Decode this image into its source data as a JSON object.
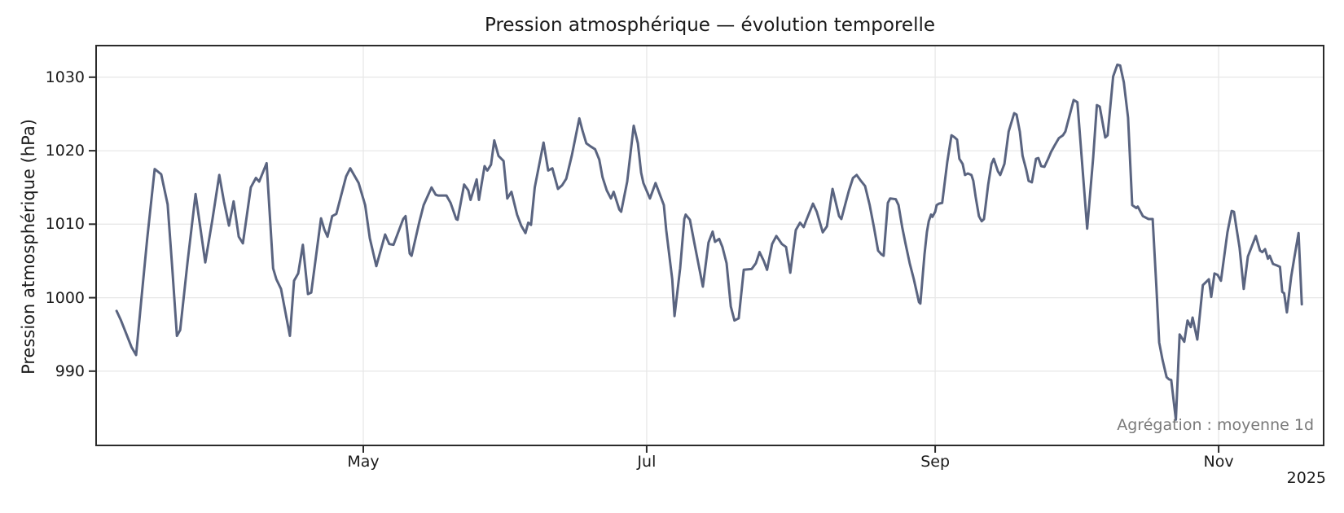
{
  "chart": {
    "title": "Pression atmosphérique — évolution temporelle",
    "ylabel": "Pression atmosphérique (hPa)",
    "annotation": "Agrégation : moyenne 1d",
    "year_offset_label": "2025",
    "colors": {
      "line": "#5a6480",
      "grid": "#e8e8e8",
      "spine": "#2b2b2b",
      "text": "#1a1a1a",
      "annotation_text": "#7a7a7a",
      "background": "#ffffff"
    }
  },
  "chart_data": {
    "type": "line",
    "title": "Pression atmosphérique — évolution temporelle",
    "xlabel": "",
    "ylabel": "Pression atmosphérique (hPa)",
    "annotation": "Agrégation : moyenne 1d",
    "x_unit": "day offset within 2025 (daily mean pressure, hPa); x tick labels are month starts",
    "grid": true,
    "legend": "none",
    "xlim_days": [
      -4.4,
      259.8
    ],
    "ylim": [
      979.9,
      1034.3
    ],
    "yticks": [
      990,
      1000,
      1010,
      1020,
      1030
    ],
    "xticks": [
      {
        "day": 53.1,
        "label": "May"
      },
      {
        "day": 114.1,
        "label": "Jul"
      },
      {
        "day": 176.2,
        "label": "Sep"
      },
      {
        "day": 237.2,
        "label": "Nov"
      }
    ],
    "x_offset_label": "2025",
    "points": [
      [
        0,
        998.2
      ],
      [
        0.9,
        997.0
      ],
      [
        1.9,
        995.4
      ],
      [
        3.2,
        993.3
      ],
      [
        4.2,
        992.2
      ],
      [
        5.3,
        999.5
      ],
      [
        6.6,
        1008.0
      ],
      [
        8.2,
        1017.5
      ],
      [
        9.6,
        1016.8
      ],
      [
        11.0,
        1012.7
      ],
      [
        12.0,
        1004.0
      ],
      [
        13.0,
        994.8
      ],
      [
        13.7,
        995.6
      ],
      [
        15.3,
        1005.0
      ],
      [
        17.0,
        1014.1
      ],
      [
        19.1,
        1004.8
      ],
      [
        20.6,
        1010.5
      ],
      [
        22.1,
        1016.7
      ],
      [
        23.1,
        1013.1
      ],
      [
        24.2,
        1009.8
      ],
      [
        25.2,
        1013.1
      ],
      [
        26.3,
        1008.3
      ],
      [
        27.2,
        1007.4
      ],
      [
        28.9,
        1015.0
      ],
      [
        30.0,
        1016.3
      ],
      [
        30.7,
        1015.8
      ],
      [
        32.3,
        1018.3
      ],
      [
        33.7,
        1004.0
      ],
      [
        34.4,
        1002.5
      ],
      [
        35.4,
        1001.2
      ],
      [
        37.3,
        994.8
      ],
      [
        38.2,
        1002.3
      ],
      [
        39.1,
        1003.3
      ],
      [
        40.1,
        1007.2
      ],
      [
        41.2,
        1000.5
      ],
      [
        41.9,
        1000.7
      ],
      [
        44.0,
        1010.8
      ],
      [
        44.7,
        1009.3
      ],
      [
        45.4,
        1008.3
      ],
      [
        46.4,
        1011.1
      ],
      [
        47.3,
        1011.4
      ],
      [
        49.4,
        1016.5
      ],
      [
        50.3,
        1017.6
      ],
      [
        52.1,
        1015.6
      ],
      [
        53.5,
        1012.6
      ],
      [
        54.5,
        1008.1
      ],
      [
        55.9,
        1004.3
      ],
      [
        57.8,
        1008.6
      ],
      [
        58.7,
        1007.3
      ],
      [
        59.6,
        1007.2
      ],
      [
        61.7,
        1010.7
      ],
      [
        62.2,
        1011.1
      ],
      [
        63.1,
        1006.0
      ],
      [
        63.5,
        1005.7
      ],
      [
        65.2,
        1010.4
      ],
      [
        66.1,
        1012.6
      ],
      [
        67.8,
        1015.0
      ],
      [
        68.7,
        1014.0
      ],
      [
        69.2,
        1013.9
      ],
      [
        71.0,
        1013.9
      ],
      [
        71.9,
        1012.9
      ],
      [
        73.1,
        1010.7
      ],
      [
        73.4,
        1010.6
      ],
      [
        74.8,
        1015.4
      ],
      [
        75.7,
        1014.6
      ],
      [
        76.2,
        1013.3
      ],
      [
        77.5,
        1016.1
      ],
      [
        78.0,
        1013.3
      ],
      [
        79.2,
        1017.9
      ],
      [
        79.8,
        1017.3
      ],
      [
        80.6,
        1018.1
      ],
      [
        81.3,
        1021.4
      ],
      [
        82.2,
        1019.3
      ],
      [
        83.3,
        1018.6
      ],
      [
        84.1,
        1013.5
      ],
      [
        85.0,
        1014.4
      ],
      [
        86.2,
        1011.3
      ],
      [
        87.1,
        1009.8
      ],
      [
        88.0,
        1008.8
      ],
      [
        88.6,
        1010.2
      ],
      [
        89.2,
        1009.9
      ],
      [
        90.0,
        1015.0
      ],
      [
        91.9,
        1021.1
      ],
      [
        92.9,
        1017.3
      ],
      [
        93.8,
        1017.6
      ],
      [
        95.0,
        1014.8
      ],
      [
        95.9,
        1015.3
      ],
      [
        96.8,
        1016.2
      ],
      [
        98.0,
        1019.4
      ],
      [
        99.6,
        1024.4
      ],
      [
        100.3,
        1022.7
      ],
      [
        101.1,
        1021.0
      ],
      [
        102.0,
        1020.6
      ],
      [
        103.0,
        1020.2
      ],
      [
        103.9,
        1018.8
      ],
      [
        104.6,
        1016.4
      ],
      [
        105.5,
        1014.6
      ],
      [
        106.4,
        1013.5
      ],
      [
        107.0,
        1014.4
      ],
      [
        108.2,
        1012.0
      ],
      [
        108.6,
        1011.7
      ],
      [
        109.9,
        1015.8
      ],
      [
        111.3,
        1023.4
      ],
      [
        112.2,
        1021.0
      ],
      [
        112.9,
        1017.0
      ],
      [
        113.4,
        1015.6
      ],
      [
        114.8,
        1013.5
      ],
      [
        116.0,
        1015.6
      ],
      [
        116.6,
        1014.6
      ],
      [
        117.8,
        1012.6
      ],
      [
        118.3,
        1009.2
      ],
      [
        119.6,
        1002.5
      ],
      [
        120.1,
        997.5
      ],
      [
        121.3,
        1004.0
      ],
      [
        122.2,
        1010.7
      ],
      [
        122.5,
        1011.3
      ],
      [
        123.4,
        1010.6
      ],
      [
        124.4,
        1007.3
      ],
      [
        125.3,
        1004.4
      ],
      [
        126.2,
        1001.5
      ],
      [
        127.4,
        1007.5
      ],
      [
        128.3,
        1009.0
      ],
      [
        128.8,
        1007.6
      ],
      [
        129.7,
        1008.0
      ],
      [
        130.4,
        1006.9
      ],
      [
        131.3,
        1004.7
      ],
      [
        132.2,
        998.8
      ],
      [
        133.0,
        996.9
      ],
      [
        133.9,
        997.2
      ],
      [
        135.0,
        1003.8
      ],
      [
        136.7,
        1003.9
      ],
      [
        137.6,
        1004.7
      ],
      [
        138.4,
        1006.2
      ],
      [
        139.3,
        1005.0
      ],
      [
        140.0,
        1003.8
      ],
      [
        141.1,
        1007.3
      ],
      [
        142.0,
        1008.4
      ],
      [
        143.2,
        1007.3
      ],
      [
        144.1,
        1006.9
      ],
      [
        145.0,
        1003.4
      ],
      [
        146.2,
        1009.2
      ],
      [
        147.1,
        1010.2
      ],
      [
        147.9,
        1009.6
      ],
      [
        148.5,
        1010.6
      ],
      [
        149.9,
        1012.8
      ],
      [
        150.7,
        1011.7
      ],
      [
        152.0,
        1008.9
      ],
      [
        152.9,
        1009.7
      ],
      [
        154.1,
        1014.8
      ],
      [
        155.5,
        1011.1
      ],
      [
        156.0,
        1010.7
      ],
      [
        157.6,
        1014.5
      ],
      [
        158.5,
        1016.3
      ],
      [
        159.3,
        1016.7
      ],
      [
        160.2,
        1015.9
      ],
      [
        161.1,
        1015.2
      ],
      [
        162.1,
        1012.6
      ],
      [
        163.0,
        1009.6
      ],
      [
        163.9,
        1006.4
      ],
      [
        164.6,
        1005.9
      ],
      [
        165.1,
        1005.7
      ],
      [
        166.0,
        1012.9
      ],
      [
        166.5,
        1013.5
      ],
      [
        167.7,
        1013.4
      ],
      [
        168.3,
        1012.6
      ],
      [
        169.1,
        1009.6
      ],
      [
        169.8,
        1007.4
      ],
      [
        170.7,
        1004.7
      ],
      [
        171.6,
        1002.5
      ],
      [
        172.7,
        999.4
      ],
      [
        173.0,
        999.2
      ],
      [
        173.9,
        1005.9
      ],
      [
        174.4,
        1008.9
      ],
      [
        174.8,
        1010.4
      ],
      [
        175.3,
        1011.3
      ],
      [
        175.6,
        1011.0
      ],
      [
        176.2,
        1011.7
      ],
      [
        176.5,
        1012.6
      ],
      [
        177.0,
        1012.8
      ],
      [
        177.7,
        1012.9
      ],
      [
        178.8,
        1018.5
      ],
      [
        179.7,
        1022.1
      ],
      [
        180.4,
        1021.8
      ],
      [
        180.9,
        1021.5
      ],
      [
        181.4,
        1018.9
      ],
      [
        182.1,
        1018.2
      ],
      [
        182.6,
        1016.7
      ],
      [
        183.2,
        1016.9
      ],
      [
        184.0,
        1016.7
      ],
      [
        184.4,
        1015.9
      ],
      [
        184.9,
        1013.7
      ],
      [
        185.6,
        1011.1
      ],
      [
        186.2,
        1010.4
      ],
      [
        186.7,
        1010.7
      ],
      [
        187.6,
        1015.4
      ],
      [
        188.3,
        1018.2
      ],
      [
        188.8,
        1018.9
      ],
      [
        189.7,
        1017.2
      ],
      [
        190.2,
        1016.7
      ],
      [
        191.1,
        1018.2
      ],
      [
        192.0,
        1022.6
      ],
      [
        193.2,
        1025.1
      ],
      [
        193.7,
        1024.9
      ],
      [
        194.4,
        1022.6
      ],
      [
        195.0,
        1019.3
      ],
      [
        195.8,
        1017.4
      ],
      [
        196.3,
        1015.9
      ],
      [
        197.0,
        1015.7
      ],
      [
        197.9,
        1018.9
      ],
      [
        198.4,
        1019.0
      ],
      [
        199.0,
        1017.9
      ],
      [
        199.7,
        1017.8
      ],
      [
        200.5,
        1018.9
      ],
      [
        201.1,
        1019.8
      ],
      [
        201.9,
        1020.7
      ],
      [
        202.8,
        1021.7
      ],
      [
        203.7,
        1022.1
      ],
      [
        204.2,
        1022.6
      ],
      [
        206.0,
        1026.9
      ],
      [
        206.8,
        1026.6
      ],
      [
        207.7,
        1019.3
      ],
      [
        208.9,
        1009.4
      ],
      [
        210.2,
        1019.1
      ],
      [
        211.0,
        1026.2
      ],
      [
        211.6,
        1026.0
      ],
      [
        212.8,
        1021.8
      ],
      [
        213.3,
        1022.1
      ],
      [
        214.5,
        1030.1
      ],
      [
        215.4,
        1031.7
      ],
      [
        216.0,
        1031.6
      ],
      [
        216.8,
        1029.3
      ],
      [
        217.7,
        1024.5
      ],
      [
        218.6,
        1012.6
      ],
      [
        219.5,
        1012.2
      ],
      [
        219.8,
        1012.4
      ],
      [
        220.9,
        1011.1
      ],
      [
        222.1,
        1010.7
      ],
      [
        223.0,
        1010.7
      ],
      [
        223.8,
        1001.4
      ],
      [
        224.4,
        993.9
      ],
      [
        225.1,
        991.6
      ],
      [
        226.0,
        989.2
      ],
      [
        226.5,
        988.9
      ],
      [
        227.0,
        988.8
      ],
      [
        228.0,
        983.4
      ],
      [
        228.8,
        995.0
      ],
      [
        229.8,
        994.0
      ],
      [
        230.5,
        996.9
      ],
      [
        231.2,
        996.0
      ],
      [
        231.6,
        997.3
      ],
      [
        232.6,
        994.3
      ],
      [
        233.8,
        1001.7
      ],
      [
        235.1,
        1002.5
      ],
      [
        235.6,
        1000.1
      ],
      [
        236.3,
        1003.3
      ],
      [
        237.0,
        1003.1
      ],
      [
        237.7,
        1002.3
      ],
      [
        239.1,
        1008.9
      ],
      [
        240.0,
        1011.8
      ],
      [
        240.5,
        1011.7
      ],
      [
        241.0,
        1009.6
      ],
      [
        241.7,
        1006.8
      ],
      [
        242.6,
        1001.2
      ],
      [
        243.5,
        1005.6
      ],
      [
        245.2,
        1008.4
      ],
      [
        246.1,
        1006.4
      ],
      [
        246.6,
        1006.2
      ],
      [
        247.2,
        1006.6
      ],
      [
        247.8,
        1005.3
      ],
      [
        248.2,
        1005.7
      ],
      [
        248.9,
        1004.6
      ],
      [
        249.7,
        1004.4
      ],
      [
        250.4,
        1004.2
      ],
      [
        250.9,
        1000.8
      ],
      [
        251.3,
        1000.6
      ],
      [
        251.9,
        998.0
      ],
      [
        252.8,
        1002.8
      ],
      [
        253.5,
        1005.5
      ],
      [
        254.4,
        1008.8
      ],
      [
        255.1,
        999.1
      ]
    ]
  }
}
